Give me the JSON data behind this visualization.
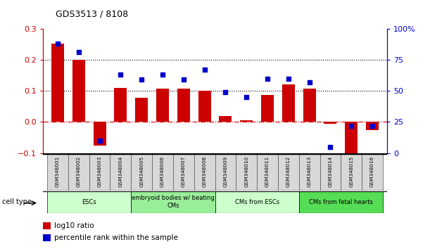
{
  "title": "GDS3513 / 8108",
  "samples": [
    "GSM348001",
    "GSM348002",
    "GSM348003",
    "GSM348004",
    "GSM348005",
    "GSM348006",
    "GSM348007",
    "GSM348008",
    "GSM348009",
    "GSM348010",
    "GSM348011",
    "GSM348012",
    "GSM348013",
    "GSM348014",
    "GSM348015",
    "GSM348016"
  ],
  "log10_ratio": [
    0.252,
    0.2,
    -0.075,
    0.11,
    0.078,
    0.108,
    0.108,
    0.1,
    0.018,
    0.005,
    0.088,
    0.12,
    0.108,
    -0.005,
    -0.11,
    -0.025
  ],
  "percentile_rank_pct": [
    88,
    81,
    10,
    63,
    59,
    63,
    59,
    67,
    49,
    45,
    60,
    60,
    57,
    5,
    22,
    22
  ],
  "bar_color": "#cc0000",
  "dot_color": "#0000cc",
  "ylim_left": [
    -0.1,
    0.3
  ],
  "ylim_right": [
    0,
    100
  ],
  "yticks_left": [
    -0.1,
    0.0,
    0.1,
    0.2,
    0.3
  ],
  "yticks_right": [
    0,
    25,
    50,
    75,
    100
  ],
  "ytick_labels_right": [
    "0",
    "25",
    "50",
    "75",
    "100%"
  ],
  "hlines": [
    0.1,
    0.2
  ],
  "zero_line_color": "#cc0000",
  "cell_type_groups": [
    {
      "label": "ESCs",
      "start": 0,
      "end": 3,
      "color": "#ccffcc"
    },
    {
      "label": "embryoid bodies w/ beating\nCMs",
      "start": 4,
      "end": 7,
      "color": "#99ee99"
    },
    {
      "label": "CMs from ESCs",
      "start": 8,
      "end": 11,
      "color": "#ccffcc"
    },
    {
      "label": "CMs from fetal hearts",
      "start": 12,
      "end": 15,
      "color": "#55dd55"
    }
  ],
  "legend_items": [
    {
      "label": "log10 ratio",
      "color": "#cc0000"
    },
    {
      "label": "percentile rank within the sample",
      "color": "#0000cc"
    }
  ],
  "cell_type_label": "cell type",
  "figsize": [
    6.11,
    3.54
  ],
  "dpi": 100
}
